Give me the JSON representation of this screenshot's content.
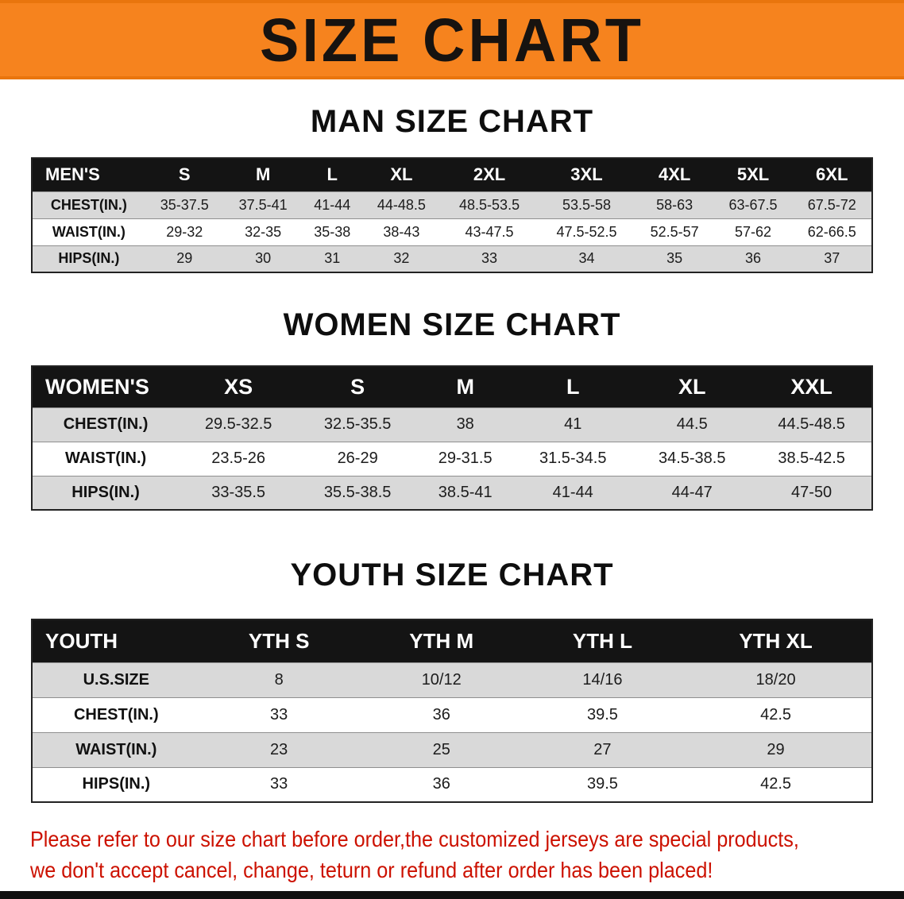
{
  "banner": {
    "title": "SIZE CHART"
  },
  "sections": [
    {
      "id": "men",
      "heading": "MAN SIZE CHART",
      "table": {
        "header": [
          "MEN'S",
          "S",
          "M",
          "L",
          "XL",
          "2XL",
          "3XL",
          "4XL",
          "5XL",
          "6XL"
        ],
        "rows": [
          {
            "label": "CHEST(IN.)",
            "values": [
              "35-37.5",
              "37.5-41",
              "41-44",
              "44-48.5",
              "48.5-53.5",
              "53.5-58",
              "58-63",
              "63-67.5",
              "67.5-72"
            ]
          },
          {
            "label": "WAIST(IN.)",
            "values": [
              "29-32",
              "32-35",
              "35-38",
              "38-43",
              "43-47.5",
              "47.5-52.5",
              "52.5-57",
              "57-62",
              "62-66.5"
            ]
          },
          {
            "label": "HIPS(IN.)",
            "values": [
              "29",
              "30",
              "31",
              "32",
              "33",
              "34",
              "35",
              "36",
              "37"
            ]
          }
        ]
      }
    },
    {
      "id": "women",
      "heading": "WOMEN SIZE CHART",
      "table": {
        "header": [
          "WOMEN'S",
          "XS",
          "S",
          "M",
          "L",
          "XL",
          "XXL"
        ],
        "rows": [
          {
            "label": "CHEST(IN.)",
            "values": [
              "29.5-32.5",
              "32.5-35.5",
              "38",
              "41",
              "44.5",
              "44.5-48.5"
            ]
          },
          {
            "label": "WAIST(IN.)",
            "values": [
              "23.5-26",
              "26-29",
              "29-31.5",
              "31.5-34.5",
              "34.5-38.5",
              "38.5-42.5"
            ]
          },
          {
            "label": "HIPS(IN.)",
            "values": [
              "33-35.5",
              "35.5-38.5",
              "38.5-41",
              "41-44",
              "44-47",
              "47-50"
            ]
          }
        ]
      }
    },
    {
      "id": "youth",
      "heading": "YOUTH SIZE CHART",
      "table": {
        "header": [
          "YOUTH",
          "YTH S",
          "YTH M",
          "YTH L",
          "YTH XL"
        ],
        "rows": [
          {
            "label": "U.S.SIZE",
            "values": [
              "8",
              "10/12",
              "14/16",
              "18/20"
            ]
          },
          {
            "label": "CHEST(IN.)",
            "values": [
              "33",
              "36",
              "39.5",
              "42.5"
            ]
          },
          {
            "label": "WAIST(IN.)",
            "values": [
              "23",
              "25",
              "27",
              "29"
            ]
          },
          {
            "label": "HIPS(IN.)",
            "values": [
              "33",
              "36",
              "39.5",
              "42.5"
            ]
          }
        ]
      }
    }
  ],
  "disclaimer": {
    "line1": "Please refer to our size chart before order,the customized jerseys are special products,",
    "line2": "we don't accept cancel, change, teturn or refund after order has been placed!"
  },
  "colors": {
    "banner_orange": "#f6831e",
    "header_black": "#141414",
    "row_gray": "#d9d9d9",
    "disclaimer_red": "#cc1100"
  }
}
